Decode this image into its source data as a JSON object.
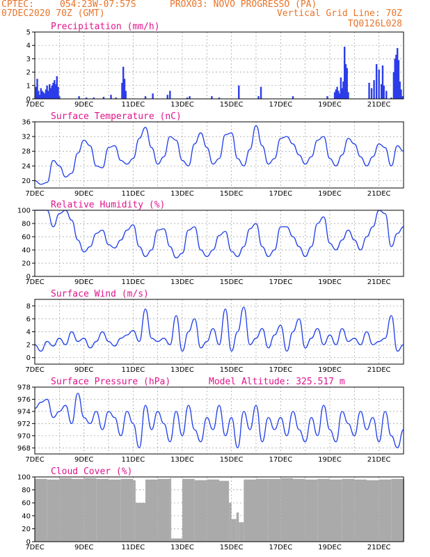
{
  "header": {
    "line1_left": "CPTEC:",
    "line1_coords": "054:23W-07:57S",
    "line1_station": "PROX03: NOVO PROGRESSO (PA)",
    "line2_date": "07DEC2020 70Z (GMT)",
    "line2_gridline": "Vertical Grid Line: 70Z",
    "line3_code": "TQ0126L028"
  },
  "colors": {
    "header": "#e8742a",
    "title": "#e0148c",
    "line": "#1f3ee8",
    "bar": "#2b3de8",
    "cloud": "#aaaaaa"
  },
  "x_labels": [
    "7DEC",
    "9DEC",
    "11DEC",
    "13DEC",
    "15DEC",
    "17DEC",
    "19DEC",
    "21DEC"
  ],
  "chart_data": [
    {
      "type": "bar",
      "title": "Precipitation (mm/h)",
      "ylim": [
        0,
        5
      ],
      "yticks": [
        0,
        1,
        2,
        3,
        4,
        5
      ],
      "x_days": [
        7,
        22
      ],
      "x": [
        7.05,
        7.1,
        7.15,
        7.2,
        7.25,
        7.3,
        7.35,
        7.4,
        7.45,
        7.5,
        7.55,
        7.6,
        7.65,
        7.7,
        7.75,
        7.8,
        7.85,
        7.9,
        7.95,
        8.0,
        8.8,
        9.1,
        9.4,
        9.8,
        10.1,
        10.3,
        10.55,
        10.6,
        10.65,
        10.7,
        11.5,
        11.8,
        12.4,
        12.5,
        13.2,
        13.3,
        14.2,
        14.5,
        15.3,
        16.1,
        16.2,
        17.5,
        18.9,
        19.2,
        19.25,
        19.3,
        19.35,
        19.4,
        19.45,
        19.5,
        19.55,
        19.6,
        19.65,
        19.7,
        19.75,
        20.6,
        20.7,
        20.8,
        20.9,
        21.0,
        21.1,
        21.15,
        21.2,
        21.3,
        21.5,
        21.6,
        21.65,
        21.7,
        21.75,
        21.8,
        21.85,
        21.9,
        21.95
      ],
      "values": [
        0.9,
        1.5,
        0.6,
        0.3,
        0.8,
        0.6,
        0.5,
        0.4,
        0.7,
        1.0,
        0.6,
        1.1,
        0.8,
        1.0,
        1.2,
        1.4,
        1.1,
        1.7,
        0.9,
        0.2,
        0.2,
        0.1,
        0.1,
        0.15,
        0.3,
        0.1,
        1.2,
        2.4,
        1.5,
        0.6,
        0.2,
        0.4,
        0.3,
        0.6,
        0.1,
        0.2,
        0.2,
        0.1,
        1.0,
        0.2,
        0.9,
        0.2,
        0.2,
        0.5,
        0.7,
        0.9,
        0.6,
        0.4,
        1.6,
        0.8,
        1.3,
        3.9,
        2.6,
        2.3,
        0.5,
        1.2,
        0.8,
        1.4,
        2.6,
        2.2,
        1.1,
        2.5,
        1.0,
        0.6,
        0.1,
        2.0,
        3.0,
        3.3,
        3.8,
        2.9,
        1.3,
        0.7,
        0.2
      ]
    },
    {
      "type": "line",
      "title": "Surface Temperature (nC)",
      "ylim": [
        18,
        36
      ],
      "yticks": [
        20,
        24,
        28,
        32,
        36
      ],
      "x": [
        7,
        7.25,
        7.5,
        7.75,
        8.0,
        8.25,
        8.5,
        8.75,
        9.0,
        9.25,
        9.5,
        9.75,
        10.0,
        10.25,
        10.5,
        10.75,
        11.0,
        11.25,
        11.5,
        11.75,
        12.0,
        12.25,
        12.5,
        12.75,
        13.0,
        13.25,
        13.5,
        13.75,
        14.0,
        14.25,
        14.5,
        14.75,
        15.0,
        15.25,
        15.5,
        15.75,
        16.0,
        16.25,
        16.5,
        16.75,
        17.0,
        17.25,
        17.5,
        17.75,
        18.0,
        18.25,
        18.5,
        18.75,
        19.0,
        19.25,
        19.5,
        19.75,
        20.0,
        20.25,
        20.5,
        20.75,
        21.0,
        21.25,
        21.5,
        21.75,
        22.0
      ],
      "values": [
        20,
        19,
        19.5,
        25.5,
        24,
        21,
        22,
        27.5,
        31,
        29.5,
        24,
        23.5,
        29,
        29.5,
        25.5,
        24.5,
        26,
        31.5,
        34.5,
        29,
        24.5,
        26.5,
        32,
        31,
        25.5,
        24,
        30,
        33,
        29,
        24.5,
        26,
        32.5,
        33,
        26,
        24,
        28.5,
        35,
        29.5,
        24.5,
        26,
        31.5,
        32,
        30,
        27,
        24.5,
        26.5,
        31,
        32,
        26,
        24,
        27,
        31.5,
        30,
        26.5,
        24,
        26.5,
        30,
        29,
        24,
        29.5,
        28
      ]
    },
    {
      "type": "line",
      "title": "Relative Humidity (%)",
      "ylim": [
        0,
        100
      ],
      "yticks": [
        0,
        20,
        40,
        60,
        80,
        100
      ],
      "x": [
        7,
        7.25,
        7.5,
        7.75,
        8.0,
        8.25,
        8.5,
        8.75,
        9.0,
        9.25,
        9.5,
        9.75,
        10.0,
        10.25,
        10.5,
        10.75,
        11.0,
        11.25,
        11.5,
        11.75,
        12.0,
        12.25,
        12.5,
        12.75,
        13.0,
        13.25,
        13.5,
        13.75,
        14.0,
        14.25,
        14.5,
        14.75,
        15.0,
        15.25,
        15.5,
        15.75,
        16.0,
        16.25,
        16.5,
        16.75,
        17.0,
        17.25,
        17.5,
        17.75,
        18.0,
        18.25,
        18.5,
        18.75,
        19.0,
        19.25,
        19.5,
        19.75,
        20.0,
        20.25,
        20.5,
        20.75,
        21.0,
        21.25,
        21.5,
        21.75,
        22.0
      ],
      "values": [
        100,
        100,
        100,
        75,
        95,
        100,
        85,
        55,
        37,
        45,
        65,
        70,
        48,
        43,
        55,
        70,
        78,
        45,
        30,
        40,
        70,
        72,
        45,
        28,
        35,
        70,
        75,
        40,
        30,
        40,
        62,
        68,
        38,
        30,
        45,
        72,
        80,
        45,
        30,
        40,
        75,
        75,
        60,
        45,
        30,
        45,
        80,
        90,
        50,
        40,
        55,
        70,
        55,
        40,
        60,
        75,
        100,
        95,
        45,
        65,
        75
      ]
    },
    {
      "type": "line",
      "title": "Surface Wind (m/s)",
      "ylim": [
        -1,
        9
      ],
      "yticks": [
        0,
        2,
        4,
        6,
        8
      ],
      "x": [
        7,
        7.25,
        7.5,
        7.75,
        8.0,
        8.25,
        8.5,
        8.75,
        9.0,
        9.25,
        9.5,
        9.75,
        10.0,
        10.25,
        10.5,
        10.75,
        11.0,
        11.25,
        11.5,
        11.75,
        12.0,
        12.25,
        12.5,
        12.75,
        13.0,
        13.25,
        13.5,
        13.75,
        14.0,
        14.25,
        14.5,
        14.75,
        15.0,
        15.25,
        15.5,
        15.75,
        16.0,
        16.25,
        16.5,
        16.75,
        17.0,
        17.25,
        17.5,
        17.75,
        18.0,
        18.25,
        18.5,
        18.75,
        19.0,
        19.25,
        19.5,
        19.75,
        20.0,
        20.25,
        20.5,
        20.75,
        21.0,
        21.25,
        21.5,
        21.75,
        22.0
      ],
      "values": [
        2,
        1,
        2.5,
        1.8,
        3,
        2,
        4,
        2.5,
        3,
        1.5,
        2.5,
        4,
        2.5,
        1.8,
        3,
        3.5,
        4.2,
        2.5,
        7.5,
        3,
        2.5,
        3,
        2,
        6.5,
        1,
        4,
        6,
        1.5,
        2.5,
        4.5,
        2,
        7.5,
        1,
        4,
        7.8,
        2,
        3,
        4.5,
        1.5,
        3.5,
        5,
        1,
        4,
        6,
        1.5,
        3,
        4.5,
        2,
        3.5,
        2,
        4.5,
        2.5,
        3,
        2,
        4,
        2,
        2.5,
        3,
        6.5,
        1,
        2
      ]
    },
    {
      "type": "line",
      "title": "Surface Pressure (hPa)",
      "annotation": "Model Altitude: 325.517 m",
      "ylim": [
        967,
        978
      ],
      "yticks": [
        968,
        970,
        972,
        974,
        976,
        978
      ],
      "x": [
        7,
        7.25,
        7.5,
        7.75,
        8.0,
        8.25,
        8.5,
        8.75,
        9.0,
        9.25,
        9.5,
        9.75,
        10.0,
        10.25,
        10.5,
        10.75,
        11.0,
        11.25,
        11.5,
        11.75,
        12.0,
        12.25,
        12.5,
        12.75,
        13.0,
        13.25,
        13.5,
        13.75,
        14.0,
        14.25,
        14.5,
        14.75,
        15.0,
        15.25,
        15.5,
        15.75,
        16.0,
        16.25,
        16.5,
        16.75,
        17.0,
        17.25,
        17.5,
        17.75,
        18.0,
        18.25,
        18.5,
        18.75,
        19.0,
        19.25,
        19.5,
        19.75,
        20.0,
        20.25,
        20.5,
        20.75,
        21.0,
        21.25,
        21.5,
        21.75,
        22.0
      ],
      "values": [
        974.5,
        975.5,
        976,
        973,
        974,
        975,
        972,
        977,
        973,
        972,
        974,
        971,
        974,
        973,
        970,
        974,
        972,
        968,
        975,
        971,
        974,
        972,
        969,
        974,
        970,
        975,
        971,
        969,
        973,
        971,
        975,
        970,
        973,
        968,
        974,
        971,
        975,
        969,
        973,
        971,
        973,
        970,
        974,
        971,
        969,
        973,
        970,
        975,
        971,
        969,
        974,
        972,
        970,
        974,
        971,
        973,
        969,
        974,
        970,
        968,
        971
      ]
    },
    {
      "type": "bar",
      "title": "Cloud Cover (%)",
      "ylim": [
        0,
        100
      ],
      "yticks": [
        0,
        20,
        40,
        60,
        80,
        100
      ],
      "x": [
        7,
        7.5,
        8,
        8.5,
        9,
        9.5,
        10,
        10.5,
        11,
        11.1,
        11.5,
        12,
        12.5,
        12.55,
        13,
        13.5,
        14,
        14.5,
        14.9,
        15,
        15.2,
        15.3,
        15.5,
        16,
        16.5,
        17,
        17.5,
        18,
        18.5,
        19,
        19.5,
        20,
        20.5,
        21,
        21.5,
        22
      ],
      "values": [
        97,
        96,
        98,
        97,
        98,
        97,
        96,
        97,
        95,
        60,
        96,
        97,
        98,
        5,
        97,
        95,
        96,
        94,
        60,
        35,
        45,
        30,
        96,
        97,
        97,
        98,
        97,
        96,
        97,
        96,
        97,
        96,
        95,
        96,
        97,
        97
      ]
    }
  ]
}
